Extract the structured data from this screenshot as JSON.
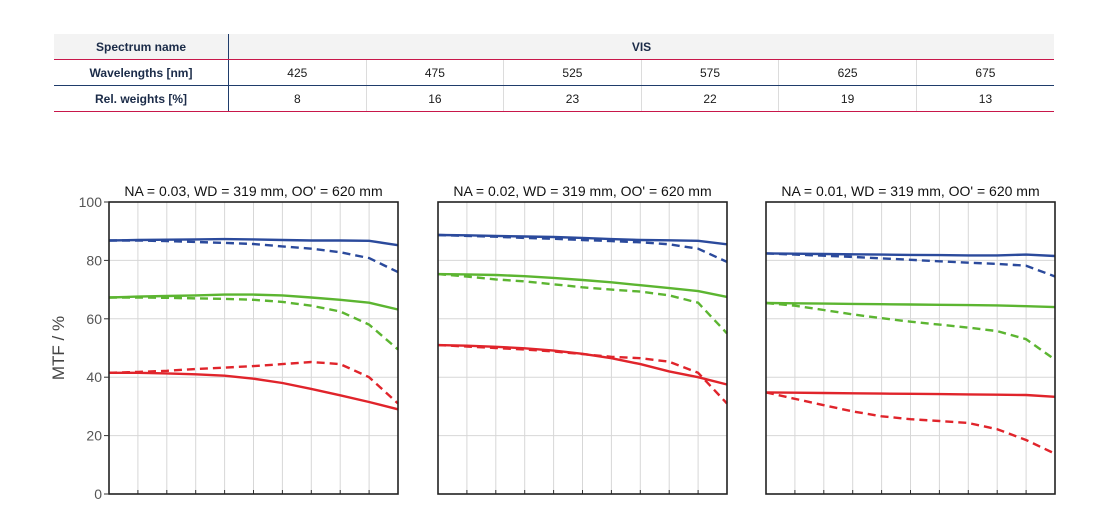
{
  "table": {
    "row_spectrum": {
      "label": "Spectrum name",
      "value": "VIS"
    },
    "row_wavelengths": {
      "label": "Wavelengths [nm]",
      "values": [
        "425",
        "475",
        "525",
        "575",
        "625",
        "675"
      ]
    },
    "row_weights": {
      "label": "Rel. weights [%]",
      "values": [
        "8",
        "16",
        "23",
        "22",
        "19",
        "13"
      ]
    }
  },
  "colors": {
    "blue": "#2b4a9c",
    "green": "#5cb531",
    "red": "#e0242b"
  },
  "chart_data": [
    {
      "type": "line",
      "title": "NA = 0.03, WD = 319 mm, OO' = 620 mm",
      "ylabel": "MTF / %",
      "ylim": [
        0,
        100
      ],
      "yticks": [
        "0",
        "20",
        "40",
        "60",
        "80",
        "100"
      ],
      "grid": true,
      "x": [
        0,
        0.1,
        0.2,
        0.3,
        0.4,
        0.5,
        0.6,
        0.7,
        0.8,
        0.9,
        1.0
      ],
      "series": [
        {
          "color": "blue",
          "dash": false,
          "values": [
            86.8,
            87.0,
            87.1,
            87.2,
            87.3,
            87.2,
            87.0,
            86.8,
            86.8,
            86.7,
            85.2
          ]
        },
        {
          "color": "blue",
          "dash": true,
          "values": [
            86.8,
            86.8,
            86.6,
            86.3,
            86.0,
            85.6,
            84.8,
            84.0,
            82.8,
            80.8,
            76.0
          ]
        },
        {
          "color": "green",
          "dash": false,
          "values": [
            67.3,
            67.6,
            67.8,
            68.0,
            68.3,
            68.3,
            68.0,
            67.3,
            66.5,
            65.5,
            63.2
          ]
        },
        {
          "color": "green",
          "dash": true,
          "values": [
            67.3,
            67.3,
            67.2,
            67.0,
            66.8,
            66.5,
            65.8,
            64.5,
            62.5,
            58.0,
            49.5
          ]
        },
        {
          "color": "red",
          "dash": false,
          "values": [
            41.5,
            41.5,
            41.3,
            41.0,
            40.5,
            39.5,
            38.0,
            36.0,
            33.8,
            31.5,
            29.0
          ]
        },
        {
          "color": "red",
          "dash": true,
          "values": [
            41.5,
            41.8,
            42.2,
            42.8,
            43.3,
            43.8,
            44.5,
            45.2,
            44.5,
            40.0,
            31.0
          ]
        }
      ]
    },
    {
      "type": "line",
      "title": "NA = 0.02, WD = 319 mm, OO' = 620 mm",
      "ylim": [
        0,
        100
      ],
      "grid": true,
      "x": [
        0,
        0.1,
        0.2,
        0.3,
        0.4,
        0.5,
        0.6,
        0.7,
        0.8,
        0.9,
        1.0
      ],
      "series": [
        {
          "color": "blue",
          "dash": false,
          "values": [
            88.7,
            88.6,
            88.4,
            88.2,
            88.0,
            87.7,
            87.3,
            87.0,
            86.9,
            86.7,
            85.5
          ]
        },
        {
          "color": "blue",
          "dash": true,
          "values": [
            88.7,
            88.4,
            88.1,
            87.7,
            87.4,
            87.0,
            86.6,
            86.2,
            85.5,
            84.0,
            79.5
          ]
        },
        {
          "color": "green",
          "dash": false,
          "values": [
            75.3,
            75.2,
            75.0,
            74.6,
            74.0,
            73.3,
            72.5,
            71.5,
            70.5,
            69.5,
            67.5
          ]
        },
        {
          "color": "green",
          "dash": true,
          "values": [
            75.3,
            74.5,
            73.5,
            72.8,
            71.8,
            70.8,
            70.0,
            69.3,
            68.0,
            65.5,
            55.0
          ]
        },
        {
          "color": "red",
          "dash": false,
          "values": [
            51.0,
            50.8,
            50.4,
            49.9,
            49.1,
            48.0,
            46.5,
            44.5,
            42.0,
            40.0,
            37.5
          ]
        },
        {
          "color": "red",
          "dash": true,
          "values": [
            51.0,
            50.5,
            50.0,
            49.5,
            48.8,
            47.9,
            47.0,
            46.5,
            45.3,
            41.5,
            31.0
          ]
        }
      ]
    },
    {
      "type": "line",
      "title": "NA = 0.01, WD = 319 mm, OO' = 620 mm",
      "ylim": [
        0,
        100
      ],
      "grid": true,
      "x": [
        0,
        0.1,
        0.2,
        0.3,
        0.4,
        0.5,
        0.6,
        0.7,
        0.8,
        0.9,
        1.0
      ],
      "series": [
        {
          "color": "blue",
          "dash": false,
          "values": [
            82.4,
            82.3,
            82.2,
            82.1,
            82.0,
            81.9,
            81.8,
            81.7,
            81.7,
            82.0,
            81.5
          ]
        },
        {
          "color": "blue",
          "dash": true,
          "values": [
            82.4,
            82.0,
            81.6,
            81.2,
            80.7,
            80.2,
            79.7,
            79.2,
            78.8,
            78.2,
            74.5
          ]
        },
        {
          "color": "green",
          "dash": false,
          "values": [
            65.4,
            65.3,
            65.2,
            65.1,
            65.0,
            64.9,
            64.8,
            64.7,
            64.6,
            64.3,
            64.0
          ]
        },
        {
          "color": "green",
          "dash": true,
          "values": [
            65.4,
            64.5,
            63.0,
            61.5,
            60.2,
            59.0,
            58.0,
            57.0,
            55.8,
            53.0,
            46.0
          ]
        },
        {
          "color": "red",
          "dash": false,
          "values": [
            34.8,
            34.7,
            34.6,
            34.5,
            34.4,
            34.3,
            34.2,
            34.1,
            34.0,
            33.9,
            33.3
          ]
        },
        {
          "color": "red",
          "dash": true,
          "values": [
            34.8,
            32.6,
            30.4,
            28.3,
            26.6,
            25.6,
            25.0,
            24.3,
            22.2,
            18.5,
            13.8
          ]
        }
      ]
    }
  ]
}
